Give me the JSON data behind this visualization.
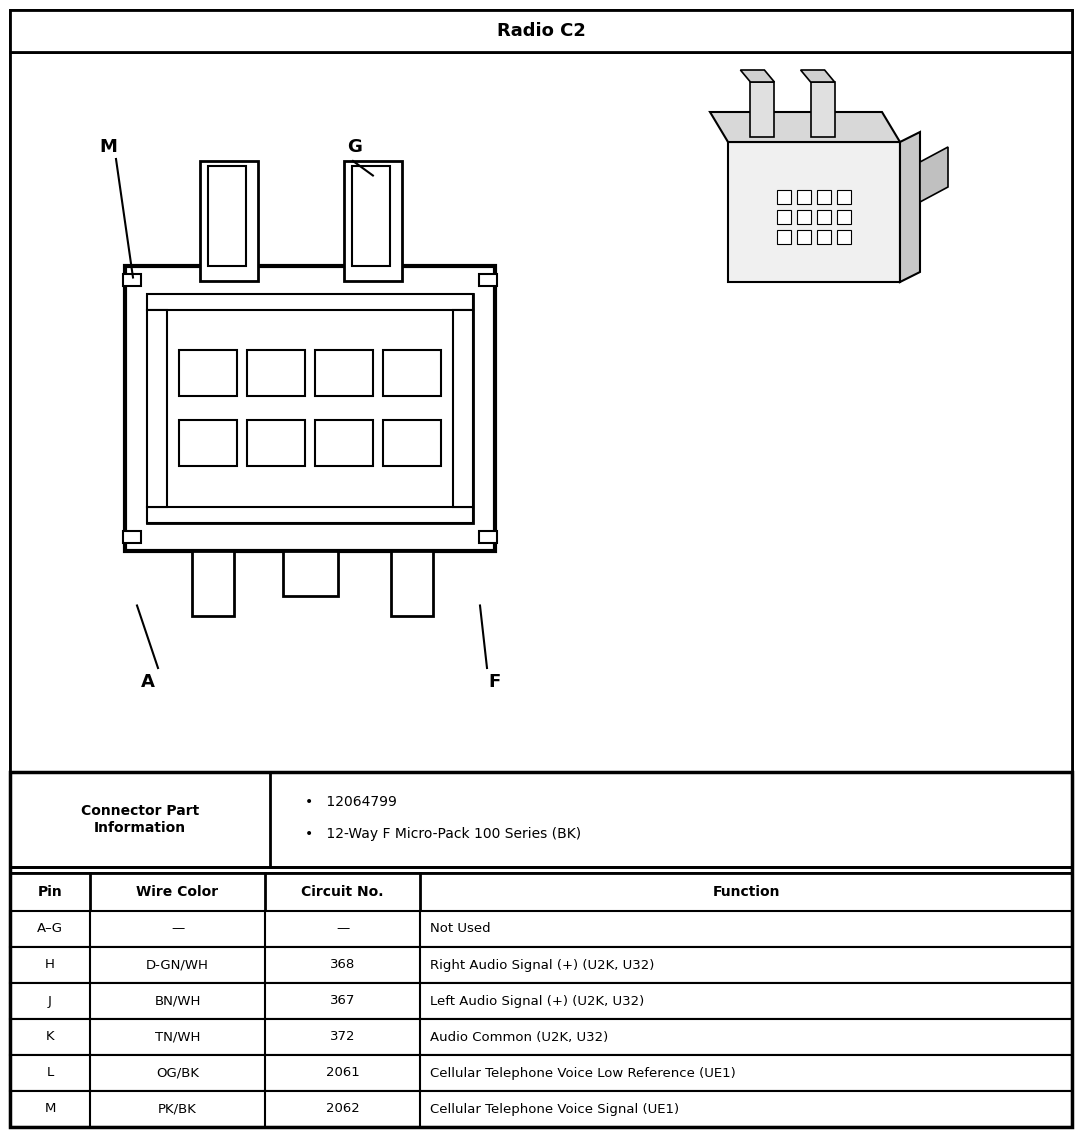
{
  "title": "Radio C2",
  "connector_label": "Connector Part Information",
  "connector_info": [
    "12064799",
    "12-Way F Micro-Pack 100 Series (BK)"
  ],
  "table_headers": [
    "Pin",
    "Wire Color",
    "Circuit No.",
    "Function"
  ],
  "table_rows": [
    [
      "A–G",
      "—",
      "—",
      "Not Used"
    ],
    [
      "H",
      "D-GN/WH",
      "368",
      "Right Audio Signal (+) (U2K, U32)"
    ],
    [
      "J",
      "BN/WH",
      "367",
      "Left Audio Signal (+) (U2K, U32)"
    ],
    [
      "K",
      "TN/WH",
      "372",
      "Audio Common (U2K, U32)"
    ],
    [
      "L",
      "OG/BK",
      "2061",
      "Cellular Telephone Voice Low Reference (UE1)"
    ],
    [
      "M",
      "PK/BK",
      "2062",
      "Cellular Telephone Voice Signal (UE1)"
    ]
  ],
  "label_M": "M",
  "label_G": "G",
  "label_A": "A",
  "label_F": "F",
  "bg_color": "#ffffff",
  "border_color": "#000000",
  "text_color": "#000000",
  "fig_width": 10.82,
  "fig_height": 11.37,
  "dpi": 100
}
